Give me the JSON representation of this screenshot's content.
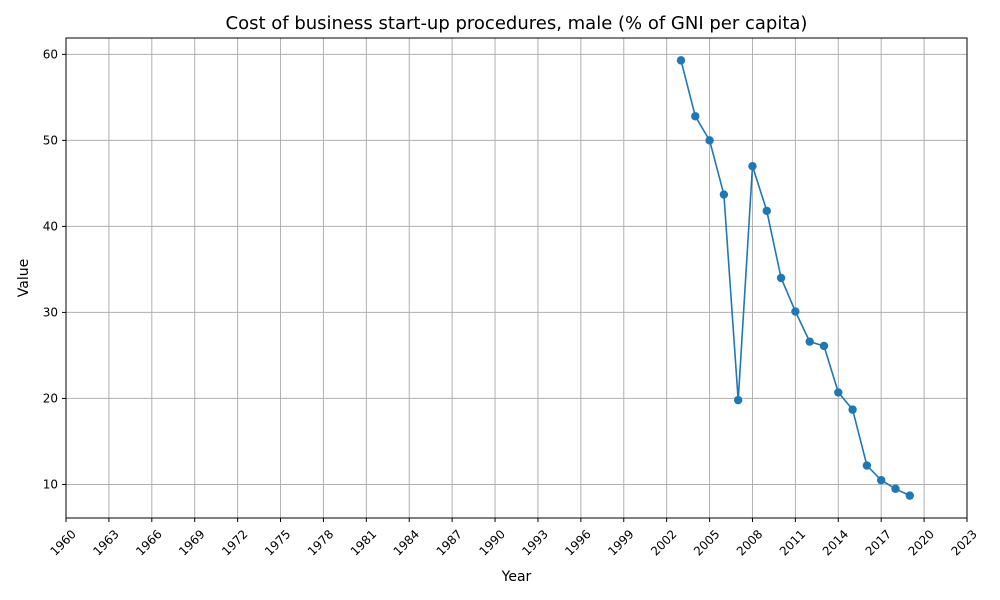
{
  "chart_data": {
    "type": "line",
    "title": "Cost of business start-up procedures, male (% of GNI per capita)",
    "xlabel": "Year",
    "ylabel": "Value",
    "xlim": [
      1960,
      2023
    ],
    "ylim": [
      6.1,
      61.9
    ],
    "xticks": [
      1960,
      1963,
      1966,
      1969,
      1972,
      1975,
      1978,
      1981,
      1984,
      1987,
      1990,
      1993,
      1996,
      1999,
      2002,
      2005,
      2008,
      2011,
      2014,
      2017,
      2020,
      2023
    ],
    "yticks": [
      10,
      20,
      30,
      40,
      50,
      60
    ],
    "grid": true,
    "color": "#1f77b4",
    "marker": "circle",
    "series": [
      {
        "x": [
          2003,
          2004,
          2005,
          2006,
          2007,
          2008,
          2009,
          2010,
          2011,
          2012,
          2013,
          2014,
          2015,
          2016,
          2017,
          2018,
          2019
        ],
        "values": [
          59.3,
          52.8,
          50.0,
          43.7,
          19.8,
          47.0,
          41.8,
          34.0,
          30.1,
          26.6,
          26.1,
          20.7,
          18.7,
          12.2,
          10.5,
          9.5,
          8.7
        ]
      }
    ]
  }
}
